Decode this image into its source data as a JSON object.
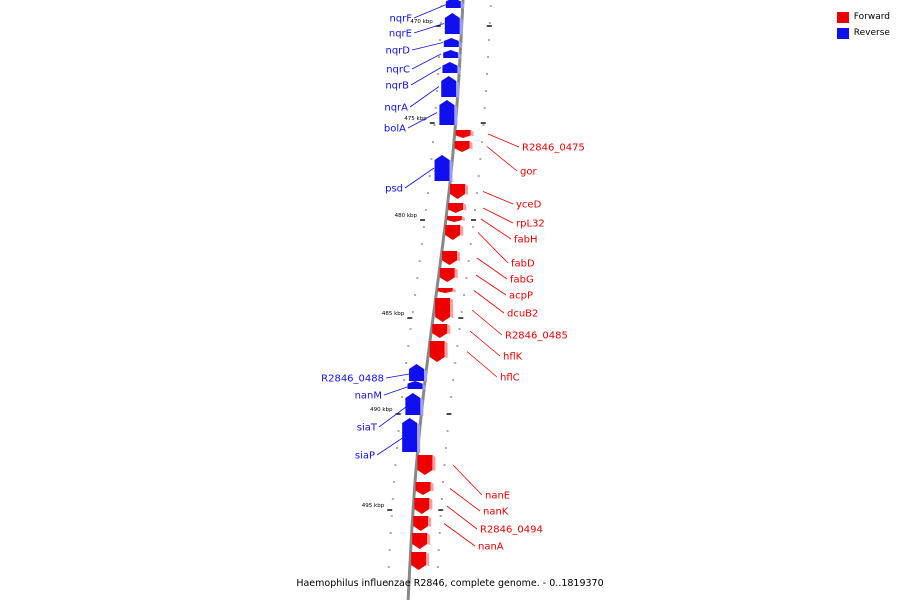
{
  "title": "Haemophilus influenzae R2846, complete genome. - 0..1819370",
  "legend": [
    {
      "label": "Forward",
      "color": "#ee0000"
    },
    {
      "label": "Reverse",
      "color": "#1010ee"
    }
  ],
  "colors": {
    "forward": "#ee0000",
    "reverse": "#1010ee",
    "backbone": "#888888"
  },
  "scale_unit": "kbp",
  "scale_labels": [
    "470 kbp",
    "475 kbp",
    "480 kbp",
    "485 kbp",
    "490 kbp",
    "495 kbp"
  ],
  "genes": [
    {
      "name": "nqrF",
      "strand": "reverse"
    },
    {
      "name": "nqrE",
      "strand": "reverse"
    },
    {
      "name": "nqrD",
      "strand": "reverse"
    },
    {
      "name": "nqrC",
      "strand": "reverse"
    },
    {
      "name": "nqrB",
      "strand": "reverse"
    },
    {
      "name": "nqrA",
      "strand": "reverse"
    },
    {
      "name": "bolA",
      "strand": "reverse"
    },
    {
      "name": "R2846_0475",
      "strand": "forward"
    },
    {
      "name": "gor",
      "strand": "forward"
    },
    {
      "name": "psd",
      "strand": "reverse"
    },
    {
      "name": "yceD",
      "strand": "forward"
    },
    {
      "name": "rpL32",
      "strand": "forward"
    },
    {
      "name": "fabH",
      "strand": "forward"
    },
    {
      "name": "fabD",
      "strand": "forward"
    },
    {
      "name": "fabG",
      "strand": "forward"
    },
    {
      "name": "acpP",
      "strand": "forward"
    },
    {
      "name": "dcuB2",
      "strand": "forward"
    },
    {
      "name": "R2846_0485",
      "strand": "forward"
    },
    {
      "name": "hflK",
      "strand": "forward"
    },
    {
      "name": "hflC",
      "strand": "forward"
    },
    {
      "name": "R2846_0488",
      "strand": "reverse"
    },
    {
      "name": "nanM",
      "strand": "reverse"
    },
    {
      "name": "siaT",
      "strand": "reverse"
    },
    {
      "name": "siaP",
      "strand": "reverse"
    },
    {
      "name": "nanE",
      "strand": "forward"
    },
    {
      "name": "nanK",
      "strand": "forward"
    },
    {
      "name": "R2846_0494",
      "strand": "forward"
    },
    {
      "name": "nanA",
      "strand": "forward"
    }
  ]
}
